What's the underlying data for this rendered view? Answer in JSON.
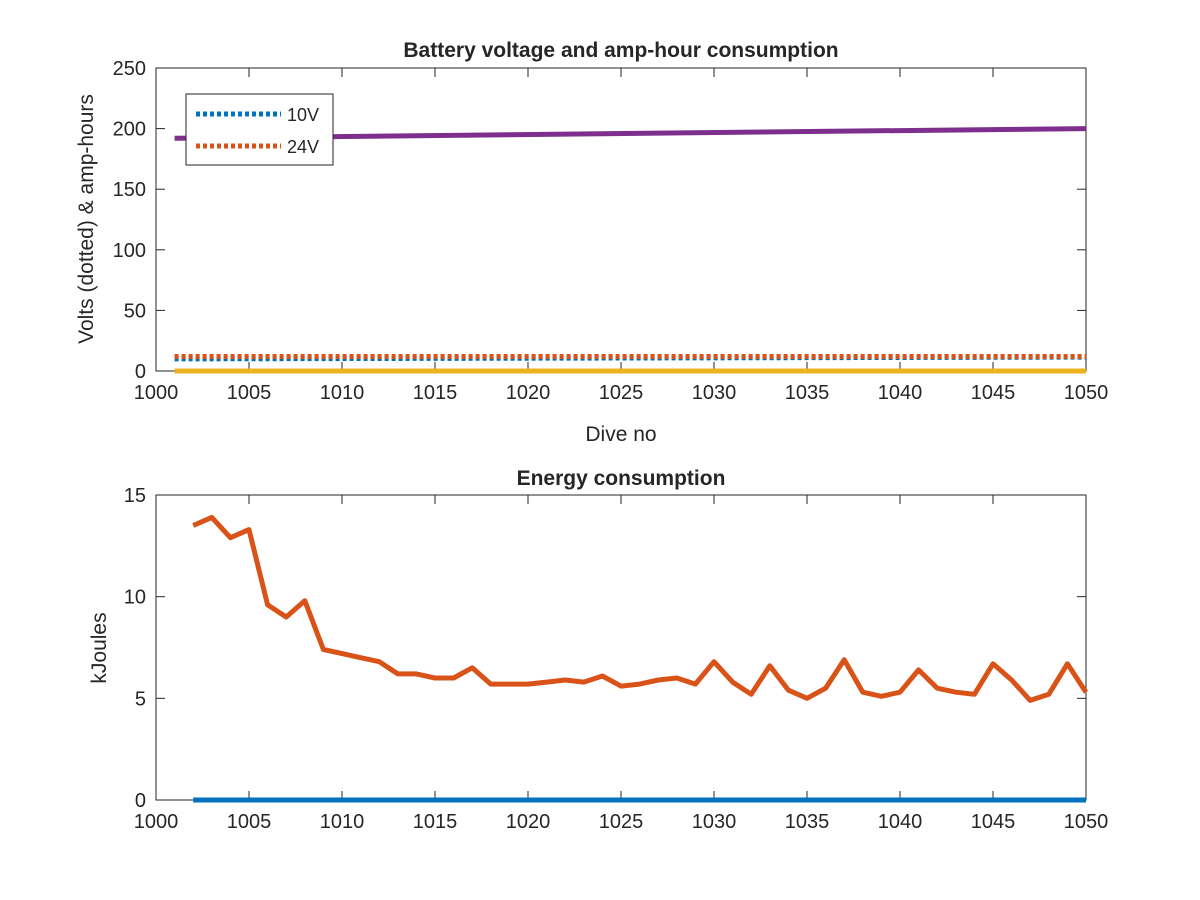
{
  "chart_data": [
    {
      "type": "line",
      "title": "Battery voltage and amp-hour consumption",
      "xlabel": "Dive no",
      "ylabel": "Volts (dotted) & amp-hours",
      "xlim": [
        1000,
        1050
      ],
      "ylim": [
        0,
        250
      ],
      "xticks": [
        "1000",
        "1005",
        "1010",
        "1015",
        "1020",
        "1025",
        "1030",
        "1035",
        "1040",
        "1045",
        "1050"
      ],
      "yticks": [
        "0",
        "50",
        "100",
        "150",
        "200",
        "250"
      ],
      "grid": false,
      "legend_position": "top-left",
      "series": [
        {
          "name": "10V",
          "style": "dotted",
          "color": "#0072bd",
          "x": [
            1001,
            1050
          ],
          "y": [
            10,
            11.5
          ]
        },
        {
          "name": "24V",
          "style": "dotted",
          "color": "#d95319",
          "x": [
            1001,
            1050
          ],
          "y": [
            12,
            12
          ]
        },
        {
          "style": "solid",
          "color": "#7e2f8e",
          "x": [
            1001,
            1050
          ],
          "y": [
            192,
            200
          ]
        },
        {
          "style": "solid",
          "color": "#edb120",
          "x": [
            1001,
            1050
          ],
          "y": [
            0,
            0
          ]
        }
      ]
    },
    {
      "type": "line",
      "title": "Energy consumption",
      "xlabel": "",
      "ylabel": "kJoules",
      "xlim": [
        1000,
        1050
      ],
      "ylim": [
        0,
        15
      ],
      "xticks": [
        "1000",
        "1005",
        "1010",
        "1015",
        "1020",
        "1025",
        "1030",
        "1035",
        "1040",
        "1045",
        "1050"
      ],
      "yticks": [
        "0",
        "5",
        "10",
        "15"
      ],
      "grid": false,
      "series": [
        {
          "style": "solid",
          "color": "#0072bd",
          "x": [
            1002,
            1050
          ],
          "y": [
            0,
            0
          ]
        },
        {
          "style": "solid",
          "color": "#d95319",
          "x": [
            1002,
            1003,
            1004,
            1005,
            1006,
            1007,
            1008,
            1009,
            1010,
            1011,
            1012,
            1013,
            1014,
            1015,
            1016,
            1017,
            1018,
            1019,
            1020,
            1021,
            1022,
            1023,
            1024,
            1025,
            1026,
            1027,
            1028,
            1029,
            1030,
            1031,
            1032,
            1033,
            1034,
            1035,
            1036,
            1037,
            1038,
            1039,
            1040,
            1041,
            1042,
            1043,
            1044,
            1045,
            1046,
            1047,
            1048,
            1049,
            1050
          ],
          "y": [
            13.5,
            13.9,
            12.9,
            13.3,
            9.6,
            9.0,
            9.8,
            7.4,
            7.2,
            7.0,
            6.8,
            6.2,
            6.2,
            6.0,
            6.0,
            6.5,
            5.7,
            5.7,
            5.7,
            5.8,
            5.9,
            5.8,
            6.1,
            5.6,
            5.7,
            5.9,
            6.0,
            5.7,
            6.8,
            5.8,
            5.2,
            6.6,
            5.4,
            5.0,
            5.5,
            6.9,
            5.3,
            5.1,
            5.3,
            6.4,
            5.5,
            5.3,
            5.2,
            6.7,
            5.9,
            4.9,
            5.2,
            6.7,
            5.3
          ]
        }
      ]
    }
  ]
}
